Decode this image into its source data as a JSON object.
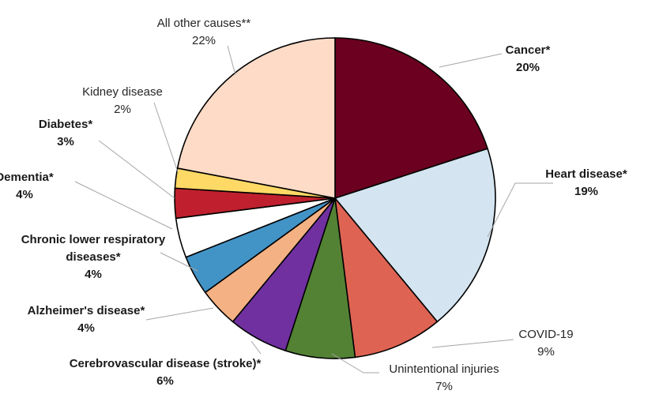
{
  "chart_data": {
    "type": "pie",
    "title": "",
    "slices": [
      {
        "label": "Cancer*",
        "value": 20,
        "display": "20%",
        "color": "#6b0020",
        "bold": true
      },
      {
        "label": "Heart disease*",
        "value": 19,
        "display": "19%",
        "color": "#d4e5f1",
        "bold": true
      },
      {
        "label": "COVID-19",
        "value": 9,
        "display": "9%",
        "color": "#de6352",
        "bold": false
      },
      {
        "label": "Unintentional injuries",
        "value": 7,
        "display": "7%",
        "color": "#548235",
        "bold": false
      },
      {
        "label": "Cerebrovascular disease (stroke)*",
        "value": 6,
        "display": "6%",
        "color": "#7030a0",
        "bold": true
      },
      {
        "label": "Alzheimer's disease*",
        "value": 4,
        "display": "4%",
        "color": "#f4b183",
        "bold": true
      },
      {
        "label": "Chronic lower respiratory diseases*",
        "label_lines": [
          "Chronic lower respiratory",
          "diseases*"
        ],
        "value": 4,
        "display": "4%",
        "color": "#4294c7",
        "bold": true
      },
      {
        "label": "Dementia*",
        "value": 4,
        "display": "4%",
        "color": "#ffffff",
        "bold": true
      },
      {
        "label": "Diabetes*",
        "value": 3,
        "display": "3%",
        "color": "#c0202e",
        "bold": true
      },
      {
        "label": "Kidney disease",
        "value": 2,
        "display": "2%",
        "color": "#ffd966",
        "bold": false
      },
      {
        "label": "All other causes**",
        "value": 22,
        "display": "22%",
        "color": "#fddbc7",
        "bold": false
      }
    ]
  }
}
